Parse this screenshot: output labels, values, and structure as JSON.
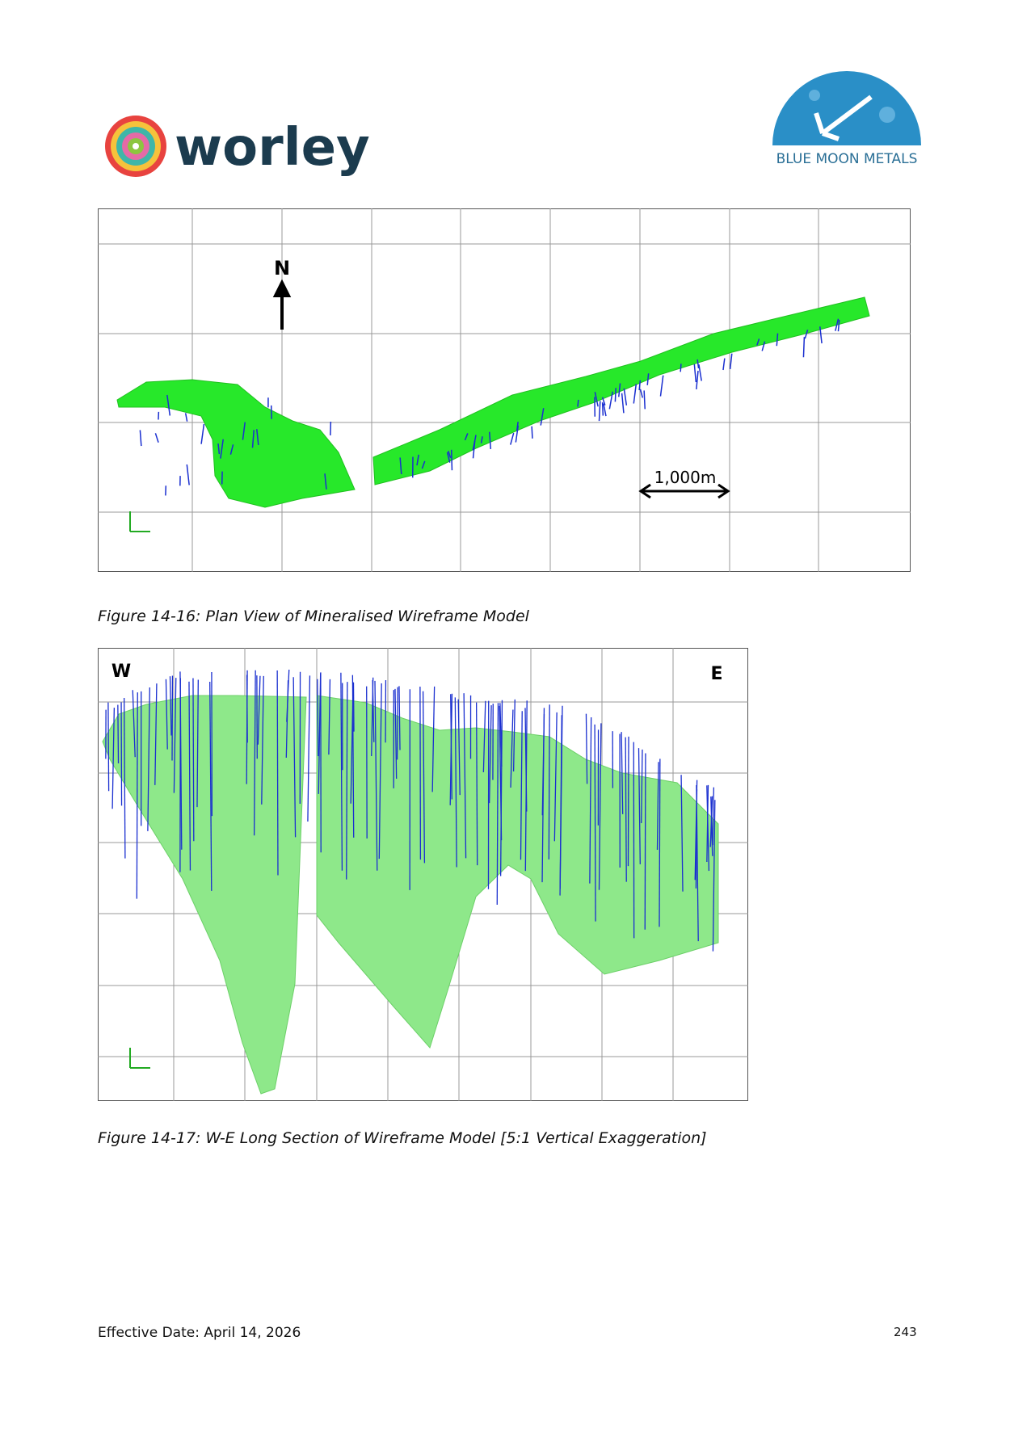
{
  "header": {
    "logo_left": "worley",
    "logo_right": "BLUE MOON METALS"
  },
  "figures": [
    {
      "labels": {
        "north": "N",
        "scale": "1,000m"
      },
      "caption": "Figure 14-16: Plan View of Mineralised Wireframe Model"
    },
    {
      "labels": {
        "west": "W",
        "east": "E"
      },
      "caption": "Figure 14-17: W-E Long Section of Wireframe Model [5:1 Vertical Exaggeration]"
    }
  ],
  "footer": {
    "date": "Effective Date: April 14, 2026",
    "page": "243"
  }
}
